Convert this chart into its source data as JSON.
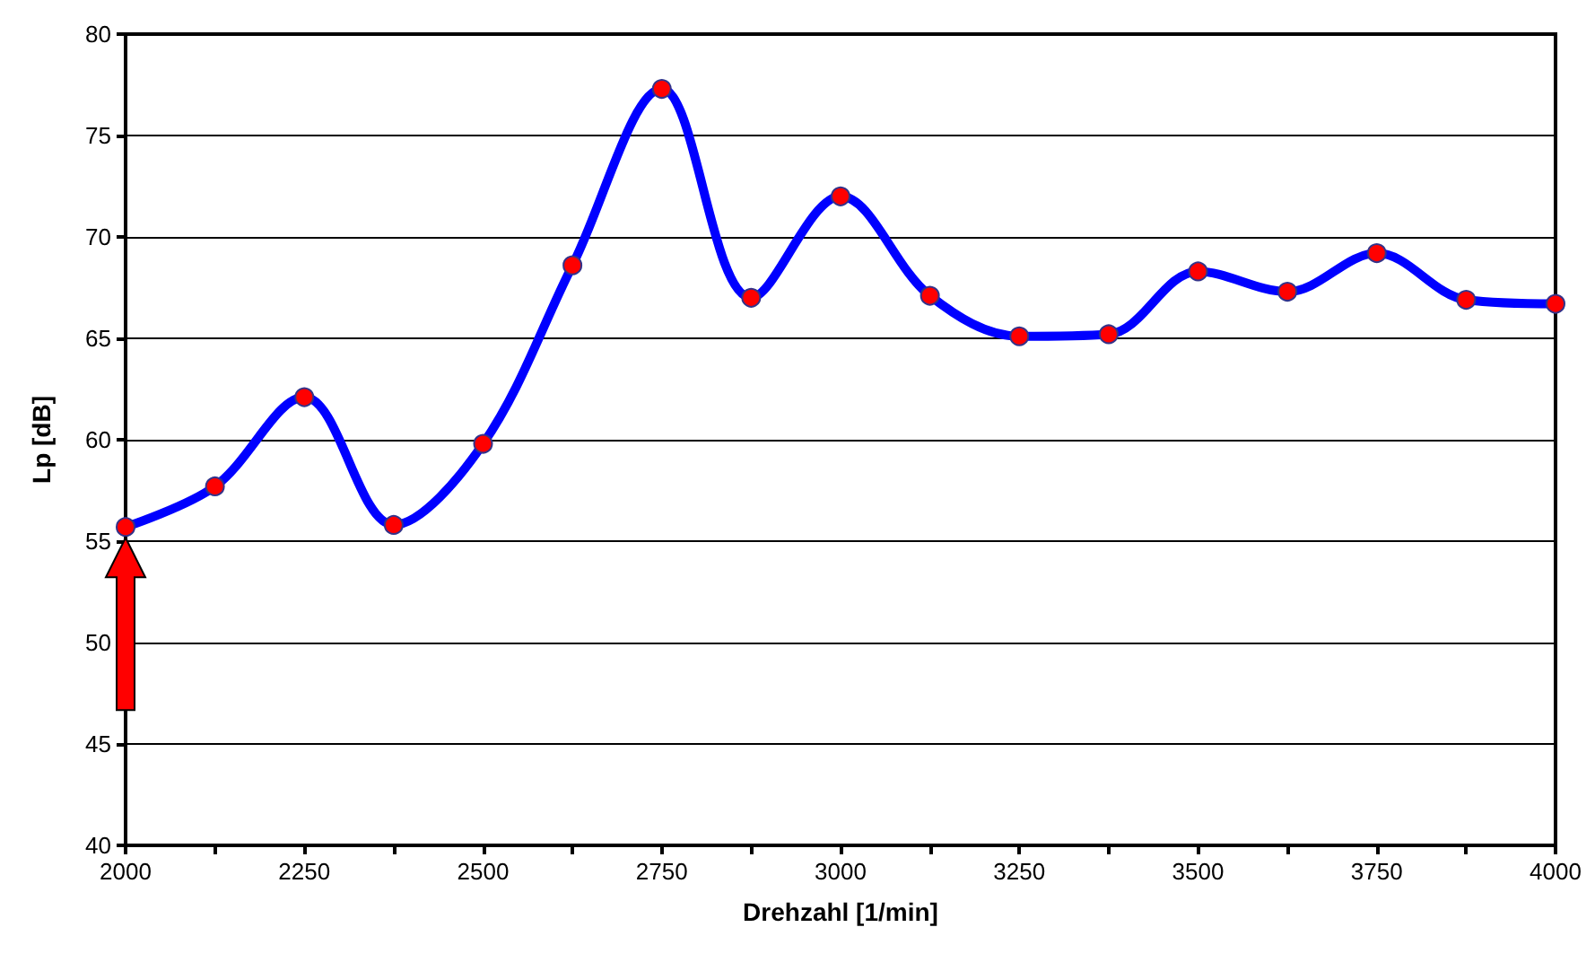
{
  "chart_data": {
    "type": "line",
    "xlabel": "Drehzahl [1/min]",
    "ylabel": "Lp [dB]",
    "x": [
      2000,
      2125,
      2250,
      2375,
      2500,
      2625,
      2750,
      2875,
      3000,
      3125,
      3250,
      3375,
      3500,
      3625,
      3750,
      3875,
      4000
    ],
    "series": [
      {
        "color": "#0000ff",
        "colors": [
          "#ff0000",
          "#ff0000",
          "#ff0000",
          "#ff0000",
          "#ff0000",
          "#ff0000",
          "#ff0000",
          "#ff0000",
          "#ff0000",
          "#ff0000",
          "#ff0000",
          "#ff0000",
          "#ff0000",
          "#ff0000",
          "#ff0000",
          "#ff0000",
          "#ff0000"
        ],
        "values": [
          55.7,
          57.7,
          62.1,
          55.8,
          59.8,
          68.6,
          77.3,
          67.0,
          72.0,
          67.1,
          65.1,
          65.2,
          68.3,
          67.3,
          69.2,
          66.9,
          66.7
        ]
      }
    ],
    "xlim": [
      2000,
      4000
    ],
    "xticks": [
      2000,
      {
        "value": 2125,
        "label": null
      },
      2250,
      {
        "value": 2375,
        "label": null
      },
      2500,
      {
        "value": 2625,
        "label": null
      },
      2750,
      {
        "value": 2875,
        "label": null
      },
      3000,
      {
        "value": 3125,
        "label": null
      },
      3250,
      {
        "value": 3375,
        "label": null
      },
      3500,
      {
        "value": 3625,
        "label": null
      },
      3750,
      {
        "value": 3875,
        "label": null
      },
      4000
    ],
    "ylim": [
      40,
      80
    ],
    "yticks": [
      40,
      45,
      50,
      55,
      60,
      65,
      70,
      75,
      80
    ],
    "grid": "y",
    "marker": "circle",
    "line_style": "solid"
  }
}
